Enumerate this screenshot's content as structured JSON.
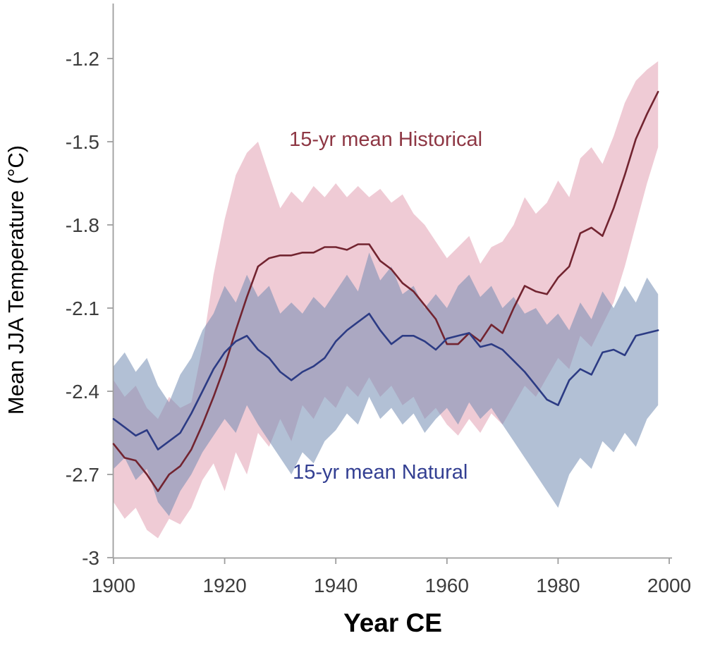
{
  "chart_data": {
    "type": "line",
    "title": "",
    "xlabel": "Year CE",
    "ylabel": "Mean JJA Temperature (°C)",
    "xlim": [
      1900,
      2000
    ],
    "ylim": [
      -3.0,
      -1.0
    ],
    "grid": false,
    "legend_position": "in-plot text annotations",
    "xticks": [
      1900,
      1920,
      1940,
      1960,
      1980,
      2000
    ],
    "yticks": [
      -1.2,
      -1.5,
      -1.8,
      -2.1,
      -2.4,
      -2.7,
      -3
    ],
    "ytick_labels": [
      "-1.2",
      "-1.5",
      "-1.8",
      "-2.1",
      "-2.4",
      "-2.7",
      "-3"
    ],
    "xtick_labels": [
      "1900",
      "1920",
      "1940",
      "1960",
      "1980",
      "2000"
    ],
    "x": [
      1900,
      1902,
      1904,
      1906,
      1908,
      1910,
      1912,
      1914,
      1916,
      1918,
      1920,
      1922,
      1924,
      1926,
      1928,
      1930,
      1932,
      1934,
      1936,
      1938,
      1940,
      1942,
      1944,
      1946,
      1948,
      1950,
      1952,
      1954,
      1956,
      1958,
      1960,
      1962,
      1964,
      1966,
      1968,
      1970,
      1972,
      1974,
      1976,
      1978,
      1980,
      1982,
      1984,
      1986,
      1988,
      1990,
      1992,
      1994,
      1996,
      1998
    ],
    "series": [
      {
        "name": "15-yr mean Historical",
        "line_color": "#722430",
        "band_color": "rgba(225,160,178,0.55)",
        "values": [
          -2.59,
          -2.64,
          -2.65,
          -2.7,
          -2.76,
          -2.7,
          -2.67,
          -2.61,
          -2.52,
          -2.42,
          -2.31,
          -2.18,
          -2.06,
          -1.95,
          -1.92,
          -1.91,
          -1.91,
          -1.9,
          -1.9,
          -1.88,
          -1.88,
          -1.89,
          -1.87,
          -1.87,
          -1.93,
          -1.96,
          -2.01,
          -2.04,
          -2.09,
          -2.14,
          -2.23,
          -2.23,
          -2.19,
          -2.22,
          -2.16,
          -2.19,
          -2.1,
          -2.02,
          -2.04,
          -2.05,
          -1.99,
          -1.95,
          -1.83,
          -1.81,
          -1.84,
          -1.74,
          -1.62,
          -1.49,
          -1.4,
          -1.32
        ],
        "band_upper": [
          -2.36,
          -2.42,
          -2.38,
          -2.46,
          -2.5,
          -2.42,
          -2.46,
          -2.44,
          -2.24,
          -1.98,
          -1.78,
          -1.62,
          -1.54,
          -1.5,
          -1.62,
          -1.74,
          -1.68,
          -1.72,
          -1.66,
          -1.7,
          -1.65,
          -1.7,
          -1.66,
          -1.7,
          -1.67,
          -1.72,
          -1.69,
          -1.76,
          -1.8,
          -1.86,
          -1.92,
          -1.88,
          -1.84,
          -1.94,
          -1.88,
          -1.86,
          -1.8,
          -1.7,
          -1.76,
          -1.72,
          -1.64,
          -1.7,
          -1.56,
          -1.52,
          -1.58,
          -1.48,
          -1.36,
          -1.28,
          -1.24,
          -1.21
        ],
        "band_lower": [
          -2.8,
          -2.86,
          -2.82,
          -2.9,
          -2.93,
          -2.86,
          -2.88,
          -2.82,
          -2.72,
          -2.66,
          -2.76,
          -2.62,
          -2.7,
          -2.55,
          -2.6,
          -2.5,
          -2.58,
          -2.45,
          -2.5,
          -2.42,
          -2.46,
          -2.38,
          -2.42,
          -2.35,
          -2.42,
          -2.38,
          -2.45,
          -2.42,
          -2.5,
          -2.46,
          -2.52,
          -2.56,
          -2.5,
          -2.55,
          -2.48,
          -2.52,
          -2.45,
          -2.38,
          -2.42,
          -2.35,
          -2.28,
          -2.32,
          -2.2,
          -2.24,
          -2.16,
          -2.08,
          -1.95,
          -1.8,
          -1.65,
          -1.52
        ]
      },
      {
        "name": "15-yr mean Natural",
        "line_color": "#2c3b84",
        "band_color": "rgba(115,140,178,0.55)",
        "values": [
          -2.5,
          -2.53,
          -2.56,
          -2.54,
          -2.61,
          -2.58,
          -2.55,
          -2.48,
          -2.4,
          -2.32,
          -2.26,
          -2.22,
          -2.2,
          -2.25,
          -2.28,
          -2.33,
          -2.36,
          -2.33,
          -2.31,
          -2.28,
          -2.22,
          -2.18,
          -2.15,
          -2.12,
          -2.18,
          -2.23,
          -2.2,
          -2.2,
          -2.22,
          -2.25,
          -2.21,
          -2.2,
          -2.19,
          -2.24,
          -2.23,
          -2.25,
          -2.29,
          -2.33,
          -2.38,
          -2.43,
          -2.45,
          -2.36,
          -2.32,
          -2.34,
          -2.26,
          -2.25,
          -2.27,
          -2.2,
          -2.19,
          -2.18
        ],
        "band_upper": [
          -2.31,
          -2.26,
          -2.33,
          -2.28,
          -2.38,
          -2.44,
          -2.34,
          -2.28,
          -2.18,
          -2.12,
          -2.02,
          -2.08,
          -1.98,
          -2.06,
          -2.02,
          -2.12,
          -2.08,
          -2.12,
          -2.06,
          -2.1,
          -2.04,
          -1.98,
          -2.04,
          -1.9,
          -2.0,
          -1.95,
          -2.05,
          -2.02,
          -2.1,
          -2.05,
          -2.1,
          -2.02,
          -1.98,
          -2.06,
          -2.02,
          -2.1,
          -2.06,
          -2.12,
          -2.1,
          -2.16,
          -2.12,
          -2.18,
          -2.08,
          -2.14,
          -2.04,
          -2.1,
          -2.02,
          -2.08,
          -1.99,
          -2.05
        ],
        "band_lower": [
          -2.68,
          -2.64,
          -2.72,
          -2.68,
          -2.8,
          -2.85,
          -2.76,
          -2.7,
          -2.62,
          -2.56,
          -2.5,
          -2.55,
          -2.45,
          -2.52,
          -2.58,
          -2.64,
          -2.7,
          -2.62,
          -2.66,
          -2.58,
          -2.54,
          -2.48,
          -2.52,
          -2.42,
          -2.5,
          -2.46,
          -2.52,
          -2.48,
          -2.55,
          -2.5,
          -2.46,
          -2.52,
          -2.44,
          -2.5,
          -2.46,
          -2.52,
          -2.58,
          -2.64,
          -2.7,
          -2.76,
          -2.82,
          -2.7,
          -2.64,
          -2.68,
          -2.58,
          -2.62,
          -2.55,
          -2.6,
          -2.5,
          -2.45
        ]
      }
    ],
    "annotations": [
      {
        "text": "15-yr mean Historical",
        "x": 1949,
        "y": -1.49,
        "color": "#8e3744"
      },
      {
        "text": "15-yr mean Natural",
        "x": 1948,
        "y": -2.69,
        "color": "#333f92"
      }
    ],
    "axis_color": "#9e9e9e",
    "tick_label_color": "#3d3d3d"
  }
}
